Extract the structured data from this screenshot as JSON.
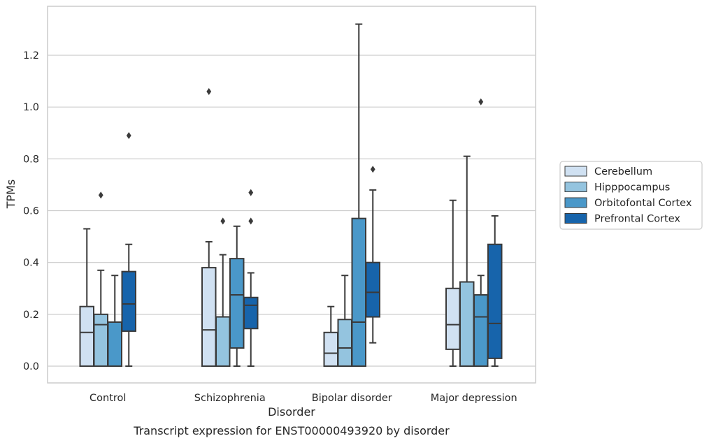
{
  "chart_data": {
    "type": "box",
    "caption": "Transcript expression for ENST00000493920 by disorder",
    "xlabel": "Disorder",
    "ylabel": "TPMs",
    "ylim": [
      -0.065,
      1.38
    ],
    "yticks": [
      "0.0",
      "0.2",
      "0.4",
      "0.6",
      "0.8",
      "1.0",
      "1.2"
    ],
    "grid": true,
    "legend_position": "right",
    "categories": [
      "Control",
      "Schizophrenia",
      "Bipolar disorder",
      "Major depression"
    ],
    "series": [
      {
        "name": "Cerebellum",
        "color": "#d0e1f2",
        "boxes": [
          {
            "whisker_low": 0.0,
            "q1": 0.0,
            "median": 0.13,
            "q3": 0.23,
            "whisker_high": 0.53,
            "outliers": []
          },
          {
            "whisker_low": 0.0,
            "q1": 0.0,
            "median": 0.14,
            "q3": 0.38,
            "whisker_high": 0.48,
            "outliers": [
              1.06
            ]
          },
          {
            "whisker_low": 0.0,
            "q1": 0.0,
            "median": 0.05,
            "q3": 0.13,
            "whisker_high": 0.23,
            "outliers": []
          },
          {
            "whisker_low": 0.0,
            "q1": 0.065,
            "median": 0.16,
            "q3": 0.3,
            "whisker_high": 0.64,
            "outliers": []
          }
        ]
      },
      {
        "name": "Hipppocampus",
        "color": "#94c4df",
        "boxes": [
          {
            "whisker_low": 0.0,
            "q1": 0.0,
            "median": 0.16,
            "q3": 0.2,
            "whisker_high": 0.37,
            "outliers": [
              0.66
            ]
          },
          {
            "whisker_low": 0.0,
            "q1": 0.0,
            "median": 0.19,
            "q3": 0.19,
            "whisker_high": 0.43,
            "outliers": [
              0.56
            ]
          },
          {
            "whisker_low": 0.0,
            "q1": 0.0,
            "median": 0.07,
            "q3": 0.18,
            "whisker_high": 0.35,
            "outliers": []
          },
          {
            "whisker_low": 0.0,
            "q1": 0.0,
            "median": 0.325,
            "q3": 0.325,
            "whisker_high": 0.81,
            "outliers": []
          }
        ]
      },
      {
        "name": "Orbitofontal Cortex",
        "color": "#4a98c9",
        "boxes": [
          {
            "whisker_low": 0.0,
            "q1": 0.0,
            "median": 0.17,
            "q3": 0.17,
            "whisker_high": 0.35,
            "outliers": []
          },
          {
            "whisker_low": 0.0,
            "q1": 0.07,
            "median": 0.275,
            "q3": 0.415,
            "whisker_high": 0.54,
            "outliers": []
          },
          {
            "whisker_low": 0.0,
            "q1": 0.0,
            "median": 0.17,
            "q3": 0.57,
            "whisker_high": 1.32,
            "outliers": []
          },
          {
            "whisker_low": 0.0,
            "q1": 0.0,
            "median": 0.19,
            "q3": 0.275,
            "whisker_high": 0.35,
            "outliers": [
              1.02
            ]
          }
        ]
      },
      {
        "name": "Prefrontal Cortex",
        "color": "#1764ab",
        "boxes": [
          {
            "whisker_low": 0.0,
            "q1": 0.135,
            "median": 0.24,
            "q3": 0.365,
            "whisker_high": 0.47,
            "outliers": [
              0.89
            ]
          },
          {
            "whisker_low": 0.0,
            "q1": 0.145,
            "median": 0.235,
            "q3": 0.265,
            "whisker_high": 0.36,
            "outliers": [
              0.56,
              0.67
            ]
          },
          {
            "whisker_low": 0.09,
            "q1": 0.19,
            "median": 0.285,
            "q3": 0.4,
            "whisker_high": 0.68,
            "outliers": [
              0.76
            ]
          },
          {
            "whisker_low": 0.0,
            "q1": 0.03,
            "median": 0.165,
            "q3": 0.47,
            "whisker_high": 0.58,
            "outliers": []
          }
        ]
      }
    ]
  }
}
